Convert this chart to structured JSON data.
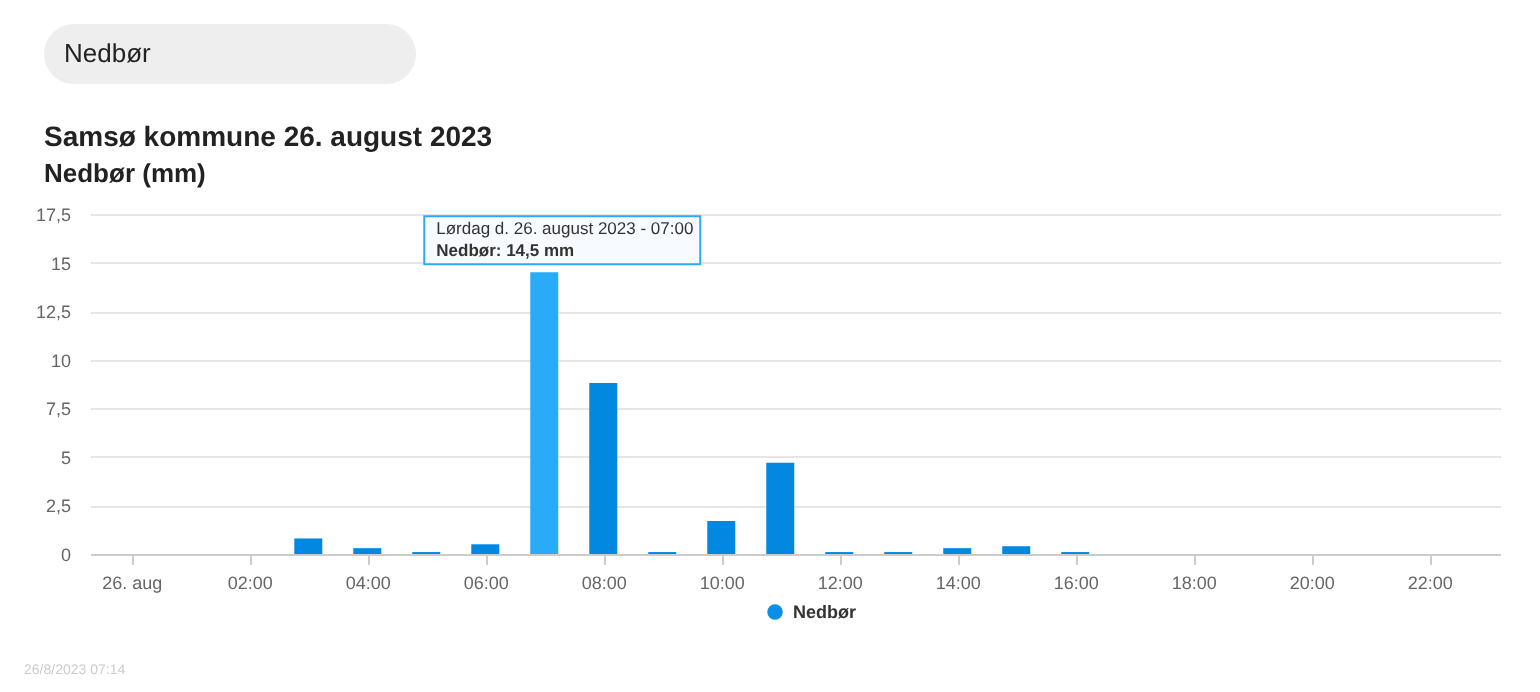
{
  "chart_data": {
    "type": "bar",
    "title": "Samsø kommune 26. august 2023",
    "subtitle": "Nedbør (mm)",
    "x": [
      0,
      1,
      2,
      3,
      4,
      5,
      6,
      7,
      8,
      9,
      10,
      11,
      12,
      13,
      14,
      15,
      16,
      17,
      18,
      19,
      20,
      21,
      22,
      23
    ],
    "series": [
      {
        "name": "Nedbør",
        "color": "#0a8ee8",
        "colors": [
          "#0288e0",
          "#0288e0",
          "#0288e0",
          "#0288e0",
          "#0288e0",
          "#0288e0",
          "#0288e0",
          "#29abf7",
          "#0288e0",
          "#0288e0",
          "#0288e0",
          "#0288e0",
          "#0288e0",
          "#0288e0",
          "#0288e0",
          "#0288e0",
          "#0288e0",
          "#0288e0",
          "#0288e0",
          "#0288e0",
          "#0288e0",
          "#0288e0",
          "#0288e0",
          "#0288e0"
        ],
        "values": [
          0,
          0,
          0,
          0.8,
          0.3,
          0.1,
          0.5,
          14.5,
          8.8,
          0.1,
          1.7,
          4.7,
          0.1,
          0.1,
          0.3,
          0.4,
          0.1,
          0,
          0,
          0,
          0,
          0,
          0,
          0
        ]
      }
    ],
    "xlim": [
      -0.7,
      23.2
    ],
    "xticks": [
      {
        "value": 0,
        "label": "26. aug"
      },
      {
        "value": 2,
        "label": "02:00"
      },
      {
        "value": 4,
        "label": "04:00"
      },
      {
        "value": 6,
        "label": "06:00"
      },
      {
        "value": 8,
        "label": "08:00"
      },
      {
        "value": 10,
        "label": "10:00"
      },
      {
        "value": 12,
        "label": "12:00"
      },
      {
        "value": 14,
        "label": "14:00"
      },
      {
        "value": 16,
        "label": "16:00"
      },
      {
        "value": 18,
        "label": "18:00"
      },
      {
        "value": 20,
        "label": "20:00"
      },
      {
        "value": 22,
        "label": "22:00"
      }
    ],
    "ylim": [
      0,
      17.5
    ],
    "yticks": [
      0,
      {
        "value": 2.5,
        "label": "2,5"
      },
      5,
      {
        "value": 7.5,
        "label": "7,5"
      },
      10,
      {
        "value": 12.5,
        "label": "12,5"
      },
      15,
      {
        "value": 17.5,
        "label": "17,5"
      }
    ],
    "grid": "y",
    "legend": "bottom",
    "annotations": [
      "Nedbør",
      "26/8/2023 07:14",
      {
        "text": "Lørdag d. 26. august 2023 - 07:00\nNedbør: 14,5 mm",
        "x": 7,
        "y": 14.5
      }
    ]
  }
}
